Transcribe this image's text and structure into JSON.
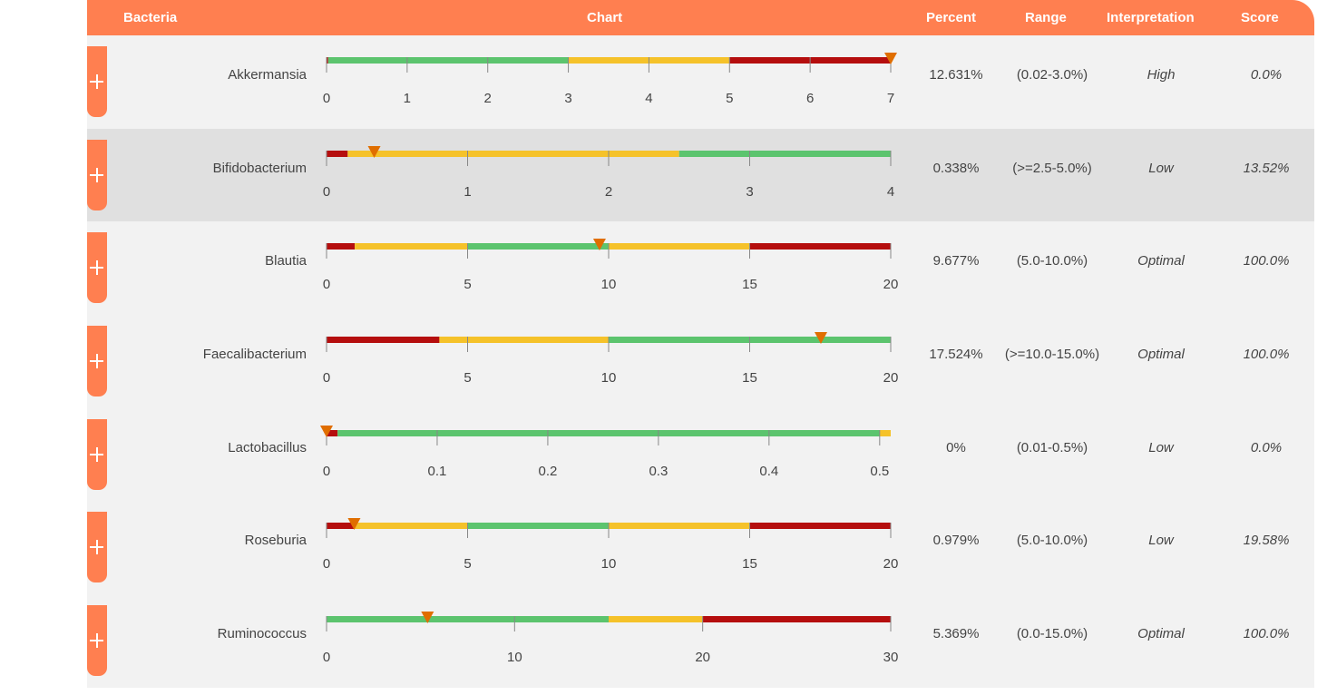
{
  "header": {
    "bacteria": "Bacteria",
    "chart": "Chart",
    "percent": "Percent",
    "range": "Range",
    "interpretation": "Interpretation",
    "score": "Score"
  },
  "colors": {
    "accent": "#ff7f50",
    "green": "#5cc46e",
    "yellow": "#f5c22a",
    "red": "#b50e0e",
    "marker": "#e06e00"
  },
  "expand_icon": "plus-icon",
  "rows": [
    {
      "name": "Akkermansia",
      "percent": "12.631%",
      "range": "(0.02-3.0%)",
      "interpretation": "High",
      "score": "0.0%",
      "chart": {
        "min": 0,
        "max": 7,
        "ticks": [
          "0",
          "1",
          "2",
          "3",
          "4",
          "5",
          "6",
          "7"
        ],
        "segments": [
          [
            "red",
            0,
            0.02
          ],
          [
            "green",
            0.02,
            3
          ],
          [
            "yellow",
            3,
            5
          ],
          [
            "red",
            5,
            7
          ]
        ],
        "marker": 7
      }
    },
    {
      "name": "Bifidobacterium",
      "percent": "0.338%",
      "range": "(>=2.5-5.0%)",
      "interpretation": "Low",
      "score": "13.52%",
      "chart": {
        "min": 0,
        "max": 4,
        "ticks": [
          "0",
          "1",
          "2",
          "3",
          "4"
        ],
        "segments": [
          [
            "red",
            0,
            0.15
          ],
          [
            "yellow",
            0.15,
            2.5
          ],
          [
            "green",
            2.5,
            4
          ]
        ],
        "marker": 0.338
      }
    },
    {
      "name": "Blautia",
      "percent": "9.677%",
      "range": "(5.0-10.0%)",
      "interpretation": "Optimal",
      "score": "100.0%",
      "chart": {
        "min": 0,
        "max": 20,
        "ticks": [
          "0",
          "5",
          "10",
          "15",
          "20"
        ],
        "segments": [
          [
            "red",
            0,
            1
          ],
          [
            "yellow",
            1,
            5
          ],
          [
            "green",
            5,
            10
          ],
          [
            "yellow",
            10,
            15
          ],
          [
            "red",
            15,
            20
          ]
        ],
        "marker": 9.677
      }
    },
    {
      "name": "Faecalibacterium",
      "percent": "17.524%",
      "range": "(>=10.0-15.0%)",
      "interpretation": "Optimal",
      "score": "100.0%",
      "chart": {
        "min": 0,
        "max": 20,
        "ticks": [
          "0",
          "5",
          "10",
          "15",
          "20"
        ],
        "segments": [
          [
            "red",
            0,
            4
          ],
          [
            "yellow",
            4,
            10
          ],
          [
            "green",
            10,
            20
          ]
        ],
        "marker": 17.524
      }
    },
    {
      "name": "Lactobacillus",
      "percent": "0%",
      "range": "(0.01-0.5%)",
      "interpretation": "Low",
      "score": "0.0%",
      "chart": {
        "min": 0,
        "max": 0.51,
        "ticks": [
          "0",
          "0.1",
          "0.2",
          "0.3",
          "0.4",
          "0.5"
        ],
        "segments": [
          [
            "red",
            0,
            0.01
          ],
          [
            "green",
            0.01,
            0.5
          ],
          [
            "yellow",
            0.5,
            0.51
          ]
        ],
        "marker": 0
      }
    },
    {
      "name": "Roseburia",
      "percent": "0.979%",
      "range": "(5.0-10.0%)",
      "interpretation": "Low",
      "score": "19.58%",
      "chart": {
        "min": 0,
        "max": 20,
        "ticks": [
          "0",
          "5",
          "10",
          "15",
          "20"
        ],
        "segments": [
          [
            "red",
            0,
            1
          ],
          [
            "yellow",
            1,
            5
          ],
          [
            "green",
            5,
            10
          ],
          [
            "yellow",
            10,
            15
          ],
          [
            "red",
            15,
            20
          ]
        ],
        "marker": 0.979
      }
    },
    {
      "name": "Ruminococcus",
      "percent": "5.369%",
      "range": "(0.0-15.0%)",
      "interpretation": "Optimal",
      "score": "100.0%",
      "chart": {
        "min": 0,
        "max": 30,
        "ticks": [
          "0",
          "10",
          "20",
          "30"
        ],
        "segments": [
          [
            "green",
            0,
            15
          ],
          [
            "yellow",
            15,
            20
          ],
          [
            "red",
            20,
            30
          ]
        ],
        "marker": 5.369
      }
    }
  ]
}
